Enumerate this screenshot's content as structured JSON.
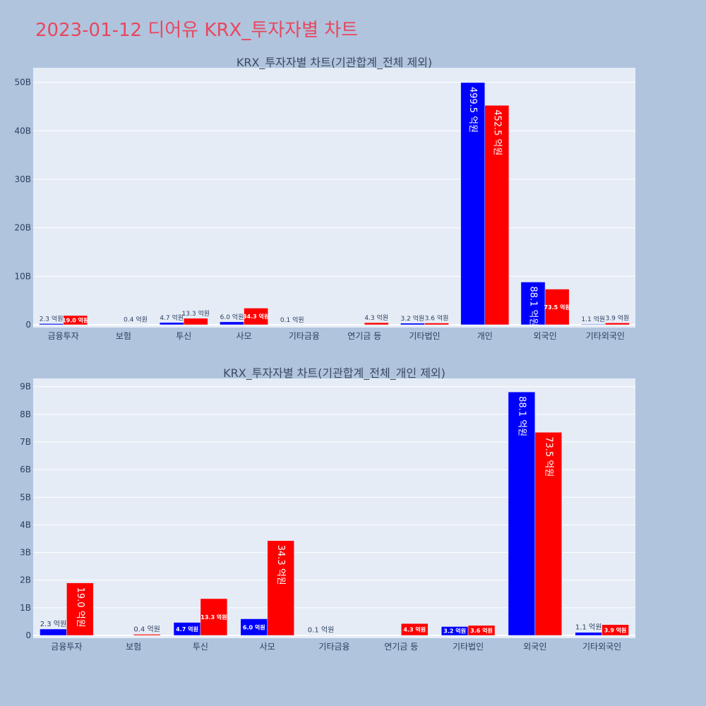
{
  "page": {
    "title": "2023-01-12 디어유 KRX_투자자별 차트"
  },
  "colors": {
    "buy": "#0000ff",
    "sell": "#ff0000",
    "plot_bg": "#e5ecf6",
    "page_bg": "#b0c4de",
    "title": "#e8475f"
  },
  "chart_data": [
    {
      "type": "bar",
      "title": "KRX_투자자별 차트(기관합계_전체 제외)",
      "categories": [
        "금융투자",
        "보험",
        "투신",
        "사모",
        "기타금융",
        "연기금 등",
        "기타법인",
        "개인",
        "외국인",
        "기타외국인"
      ],
      "series": [
        {
          "color": "#0000ff",
          "values": [
            230000000,
            0,
            470000000,
            600000000,
            10000000,
            0,
            320000000,
            49950000000,
            8810000000,
            110000000
          ],
          "labels": [
            "2.3 억원",
            "",
            "4.7 억원",
            "6.0 억원",
            "0.1 억원",
            "",
            "3.2 억원",
            "499.5 억원",
            "88.1 억원",
            "1.1 억원"
          ]
        },
        {
          "color": "#ff0000",
          "values": [
            1900000000,
            40000000,
            1330000000,
            3430000000,
            0,
            430000000,
            360000000,
            45250000000,
            7350000000,
            390000000
          ],
          "labels": [
            "19.0 억원",
            "0.4 억원",
            "13.3 억원",
            "34.3 억원",
            "",
            "4.3 억원",
            "3.6 억원",
            "452.5 억원",
            "73.5 억원",
            "3.9 억원"
          ]
        }
      ],
      "yticks": [
        0,
        10000000000,
        20000000000,
        30000000000,
        40000000000,
        50000000000
      ],
      "ytick_labels": [
        "0",
        "10B",
        "20B",
        "30B",
        "40B",
        "50B"
      ],
      "ylim": [
        0,
        53000000000
      ],
      "grid": true,
      "legend": "none"
    },
    {
      "type": "bar",
      "title": "KRX_투자자별 차트(기관합계_전체_개인 제외)",
      "categories": [
        "금융투자",
        "보험",
        "투신",
        "사모",
        "기타금융",
        "연기금 등",
        "기타법인",
        "외국인",
        "기타외국인"
      ],
      "series": [
        {
          "color": "#0000ff",
          "values": [
            230000000,
            0,
            470000000,
            600000000,
            10000000,
            0,
            320000000,
            8810000000,
            110000000
          ],
          "labels": [
            "2.3 억원",
            "",
            "4.7 억원",
            "6.0 억원",
            "0.1 억원",
            "",
            "3.2 억원",
            "88.1 억원",
            "1.1 억원"
          ]
        },
        {
          "color": "#ff0000",
          "values": [
            1900000000,
            40000000,
            1330000000,
            3430000000,
            0,
            430000000,
            360000000,
            7350000000,
            390000000
          ],
          "labels": [
            "19.0 억원",
            "0.4 억원",
            "13.3 억원",
            "34.3 억원",
            "",
            "4.3 억원",
            "3.6 억원",
            "73.5 억원",
            "3.9 억원"
          ]
        }
      ],
      "yticks": [
        0,
        1000000000,
        2000000000,
        3000000000,
        4000000000,
        5000000000,
        6000000000,
        7000000000,
        8000000000,
        9000000000
      ],
      "ytick_labels": [
        "0",
        "1B",
        "2B",
        "3B",
        "4B",
        "5B",
        "6B",
        "7B",
        "8B",
        "9B"
      ],
      "ylim": [
        0,
        9300000000
      ],
      "grid": true,
      "legend": "none"
    }
  ]
}
